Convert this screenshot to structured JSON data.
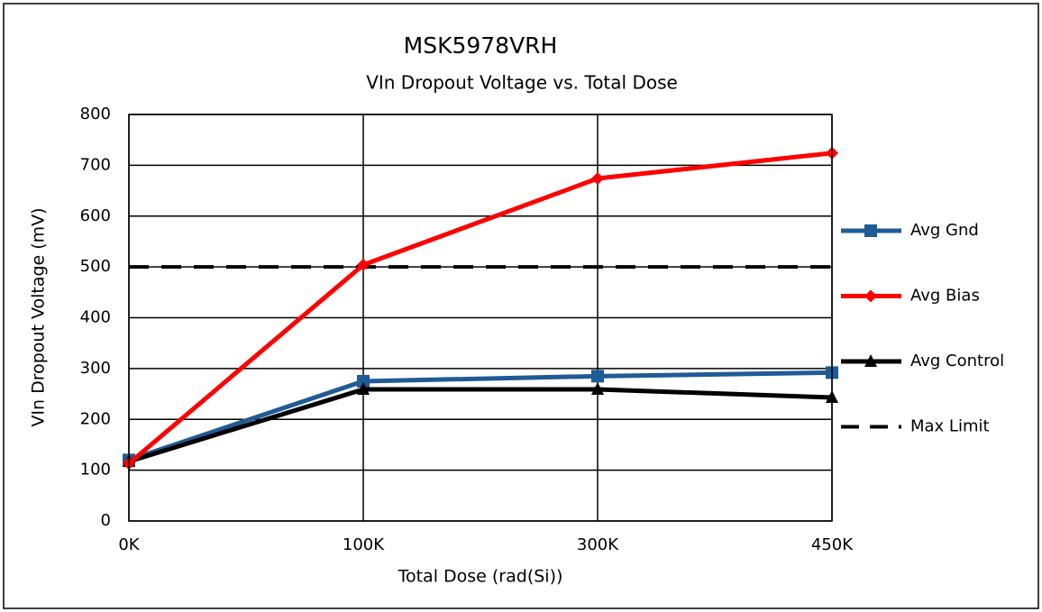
{
  "chart_data": {
    "type": "line",
    "title": "MSK5978VRH",
    "subtitle": "VIn Dropout Voltage vs. Total Dose",
    "x_label": "Total Dose (rad(Si))",
    "y_label": "VIn Dropout Voltage (mV)",
    "categories": [
      "0K",
      "100K",
      "300K",
      "450K"
    ],
    "series": [
      {
        "name": "Avg Gnd",
        "color": "#1f5b96",
        "marker": "square",
        "values": [
          120,
          275,
          285,
          292
        ]
      },
      {
        "name": "Avg Bias",
        "color": "#ff0000",
        "marker": "diamond",
        "values": [
          113,
          504,
          674,
          724
        ]
      },
      {
        "name": "Avg Control",
        "color": "#000000",
        "marker": "triangle",
        "values": [
          117,
          259,
          259,
          243
        ]
      },
      {
        "name": "Max Limit",
        "color": "#000000",
        "marker": "none",
        "dashed": true,
        "values": [
          500,
          500,
          500,
          500
        ]
      }
    ],
    "ylim": [
      0,
      800
    ],
    "yticks": [
      0,
      100,
      200,
      300,
      400,
      500,
      600,
      700,
      800
    ],
    "grid": true,
    "legend": "right"
  }
}
